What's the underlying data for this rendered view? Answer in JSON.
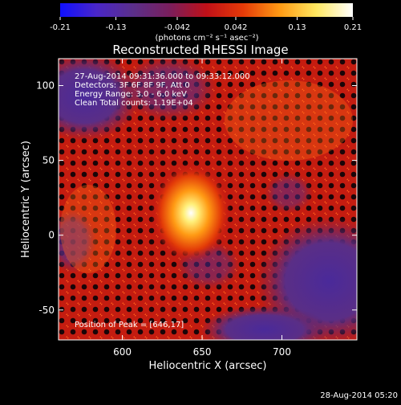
{
  "chart_data": {
    "type": "heatmap",
    "title": "Reconstructed RHESSI Image",
    "xlabel": "Heliocentric X (arcsec)",
    "ylabel": "Heliocentric Y (arcsec)",
    "xlim": [
      560,
      747
    ],
    "ylim": [
      -70,
      118
    ],
    "x_ticks": [
      600,
      650,
      700
    ],
    "y_ticks": [
      -50,
      0,
      50,
      100
    ],
    "colorbar": {
      "min": -0.21,
      "max": 0.21,
      "ticks": [
        "-0.21",
        "-0.13",
        "-0.042",
        "0.042",
        "0.13",
        "0.21"
      ],
      "label": "(photons cm⁻² s⁻¹ asec⁻²)",
      "colormap_stops": [
        "#1010ff",
        "#4a26c8",
        "#5b2f8a",
        "#7a1e5c",
        "#c01018",
        "#e63a08",
        "#ff9a14",
        "#ffe860",
        "#ffffff"
      ]
    },
    "peak": {
      "x": 646,
      "y": 17,
      "label": "Position of Peak = [646,17]"
    },
    "annotations": [
      "27-Aug-2014 09:31:36.000 to 09:33:12.000",
      "Detectors: 3F 6F 8F 9F, Att 0",
      "Energy Range: 3.0 - 6.0 keV",
      "Clean    Total counts: 1.19E+04"
    ]
  },
  "footer_date": "28-Aug-2014 05:20"
}
